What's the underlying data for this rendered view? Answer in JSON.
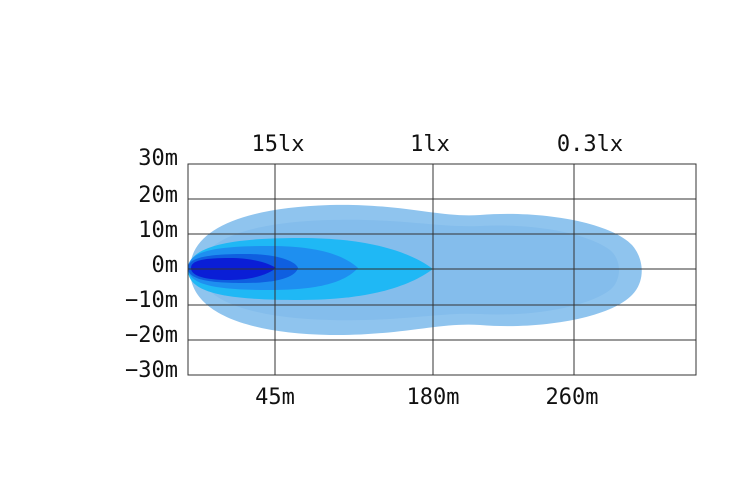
{
  "lux_labels": [
    "15lx",
    "1lx",
    "0.3lx"
  ],
  "y_labels": [
    "30m",
    "20m",
    "10m",
    "0m",
    "−10m",
    "−20m",
    "−30m"
  ],
  "x_labels": [
    "45m",
    "180m",
    "260m"
  ]
}
